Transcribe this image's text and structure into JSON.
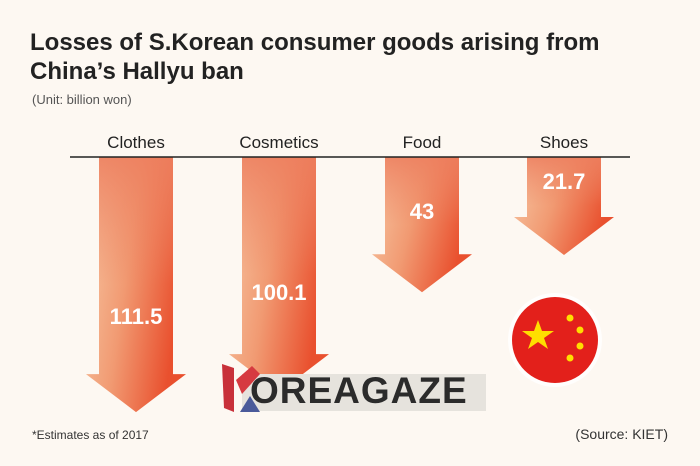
{
  "chart_data": {
    "type": "bar",
    "title": "Losses of S.Korean consumer goods arising from China’s Hallyu ban",
    "subtitle": "(Unit: billion won)",
    "categories": [
      "Clothes",
      "Cosmetics",
      "Food",
      "Shoes"
    ],
    "values": [
      111.5,
      100.1,
      43,
      21.7
    ],
    "value_labels": [
      "111.5",
      "100.1",
      "43",
      "21.7"
    ],
    "orientation": "downward-arrows",
    "xlabel": "",
    "ylabel": "",
    "footnote": "*Estimates as of 2017",
    "source": "(Source: KIET)"
  },
  "watermark": "KOREAGAZE",
  "colors": {
    "arrow_light": "#f6c9a8",
    "arrow_dark": "#ec5a35",
    "text": "#222222"
  }
}
